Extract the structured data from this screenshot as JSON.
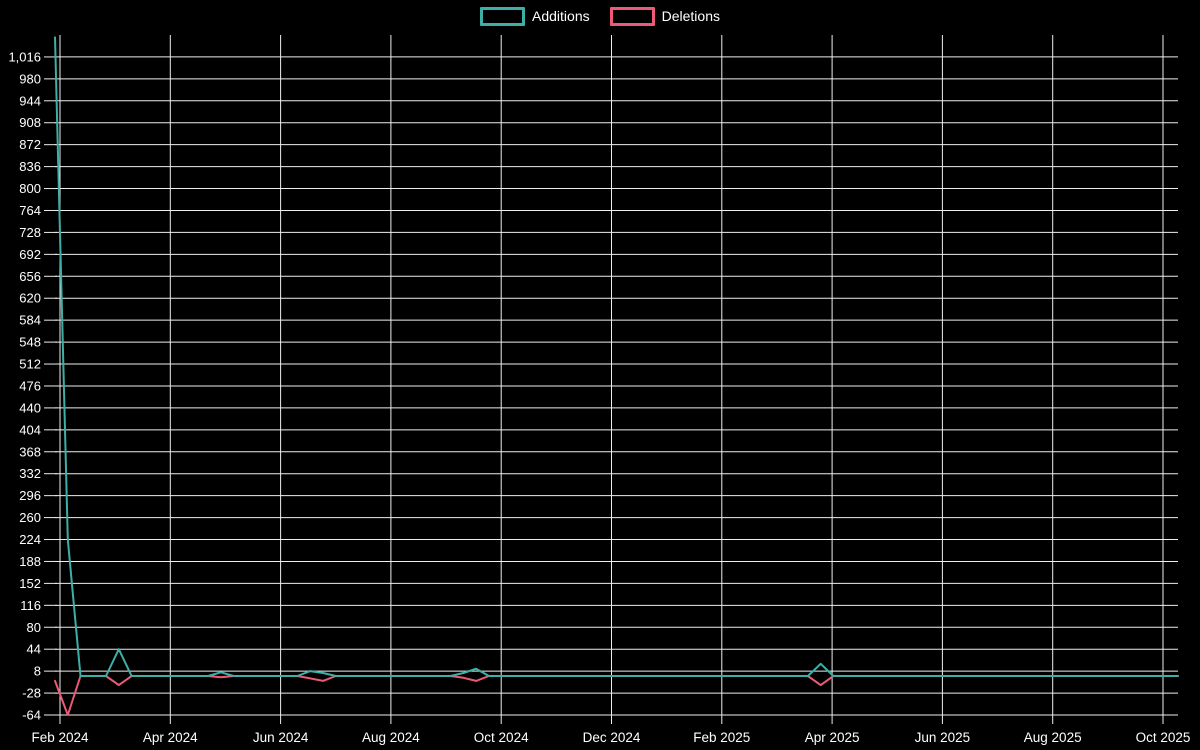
{
  "legend": {
    "items": [
      {
        "label": "Additions",
        "color": "#3cb0a8"
      },
      {
        "label": "Deletions",
        "color": "#ed5a77"
      }
    ]
  },
  "colors": {
    "background": "#000000",
    "grid": "#eeeeee",
    "text": "#ffffff",
    "additions": "#3cb0a8",
    "deletions": "#ed5a77"
  },
  "chart_data": {
    "type": "line",
    "title": "",
    "legend_position": "top-center",
    "grid": true,
    "x_axis": {
      "tick_labels": [
        "Feb 2024",
        "Apr 2024",
        "Jun 2024",
        "Aug 2024",
        "Oct 2024",
        "Dec 2024",
        "Feb 2025",
        "Apr 2025",
        "Jun 2025",
        "Aug 2025",
        "Oct 2025"
      ],
      "gridline_every_months": 2,
      "weeks_total": 89
    },
    "y_axis": {
      "tick_values": [
        -64,
        -28,
        8,
        44,
        80,
        116,
        152,
        188,
        224,
        260,
        296,
        332,
        368,
        404,
        440,
        476,
        512,
        548,
        584,
        620,
        656,
        692,
        728,
        764,
        800,
        836,
        872,
        908,
        944,
        980,
        1016
      ],
      "tick_labels": [
        "-64",
        "-28",
        "8",
        "44",
        "80",
        "116",
        "152",
        "188",
        "224",
        "260",
        "296",
        "332",
        "368",
        "404",
        "440",
        "476",
        "512",
        "548",
        "584",
        "620",
        "656",
        "692",
        "728",
        "764",
        "800",
        "836",
        "872",
        "908",
        "944",
        "980",
        "1,016"
      ],
      "range": [
        -64,
        1052
      ]
    },
    "series": [
      {
        "name": "Additions",
        "color": "#3cb0a8",
        "weekly_values": [
          1048,
          224,
          0,
          0,
          0,
          44,
          0,
          0,
          0,
          0,
          0,
          0,
          0,
          6,
          0,
          0,
          0,
          0,
          0,
          0,
          8,
          5,
          0,
          0,
          0,
          0,
          0,
          0,
          0,
          0,
          0,
          0,
          5,
          12,
          0,
          0,
          0,
          0,
          0,
          0,
          0,
          0,
          0,
          0,
          0,
          0,
          0,
          0,
          0,
          0,
          0,
          0,
          0,
          0,
          0,
          0,
          0,
          0,
          0,
          0,
          20,
          0,
          0,
          0,
          0,
          0,
          0,
          0,
          0,
          0,
          0,
          0,
          0,
          0,
          0,
          0,
          0,
          0,
          0,
          0,
          0,
          0,
          0,
          0,
          0,
          0,
          0,
          0,
          0
        ]
      },
      {
        "name": "Deletions",
        "color": "#ed5a77",
        "weekly_values": [
          -8,
          -64,
          0,
          0,
          0,
          -15,
          0,
          0,
          0,
          0,
          0,
          0,
          0,
          -2,
          0,
          0,
          0,
          0,
          0,
          0,
          -4,
          -8,
          0,
          0,
          0,
          0,
          0,
          0,
          0,
          0,
          0,
          0,
          -3,
          -8,
          0,
          0,
          0,
          0,
          0,
          0,
          0,
          0,
          0,
          0,
          0,
          0,
          0,
          0,
          0,
          0,
          0,
          0,
          0,
          0,
          0,
          0,
          0,
          0,
          0,
          0,
          -15,
          0,
          0,
          0,
          0,
          0,
          0,
          0,
          0,
          0,
          0,
          0,
          0,
          0,
          0,
          0,
          0,
          0,
          0,
          0,
          0,
          0,
          0,
          0,
          0,
          0,
          0,
          0,
          0
        ]
      }
    ]
  }
}
